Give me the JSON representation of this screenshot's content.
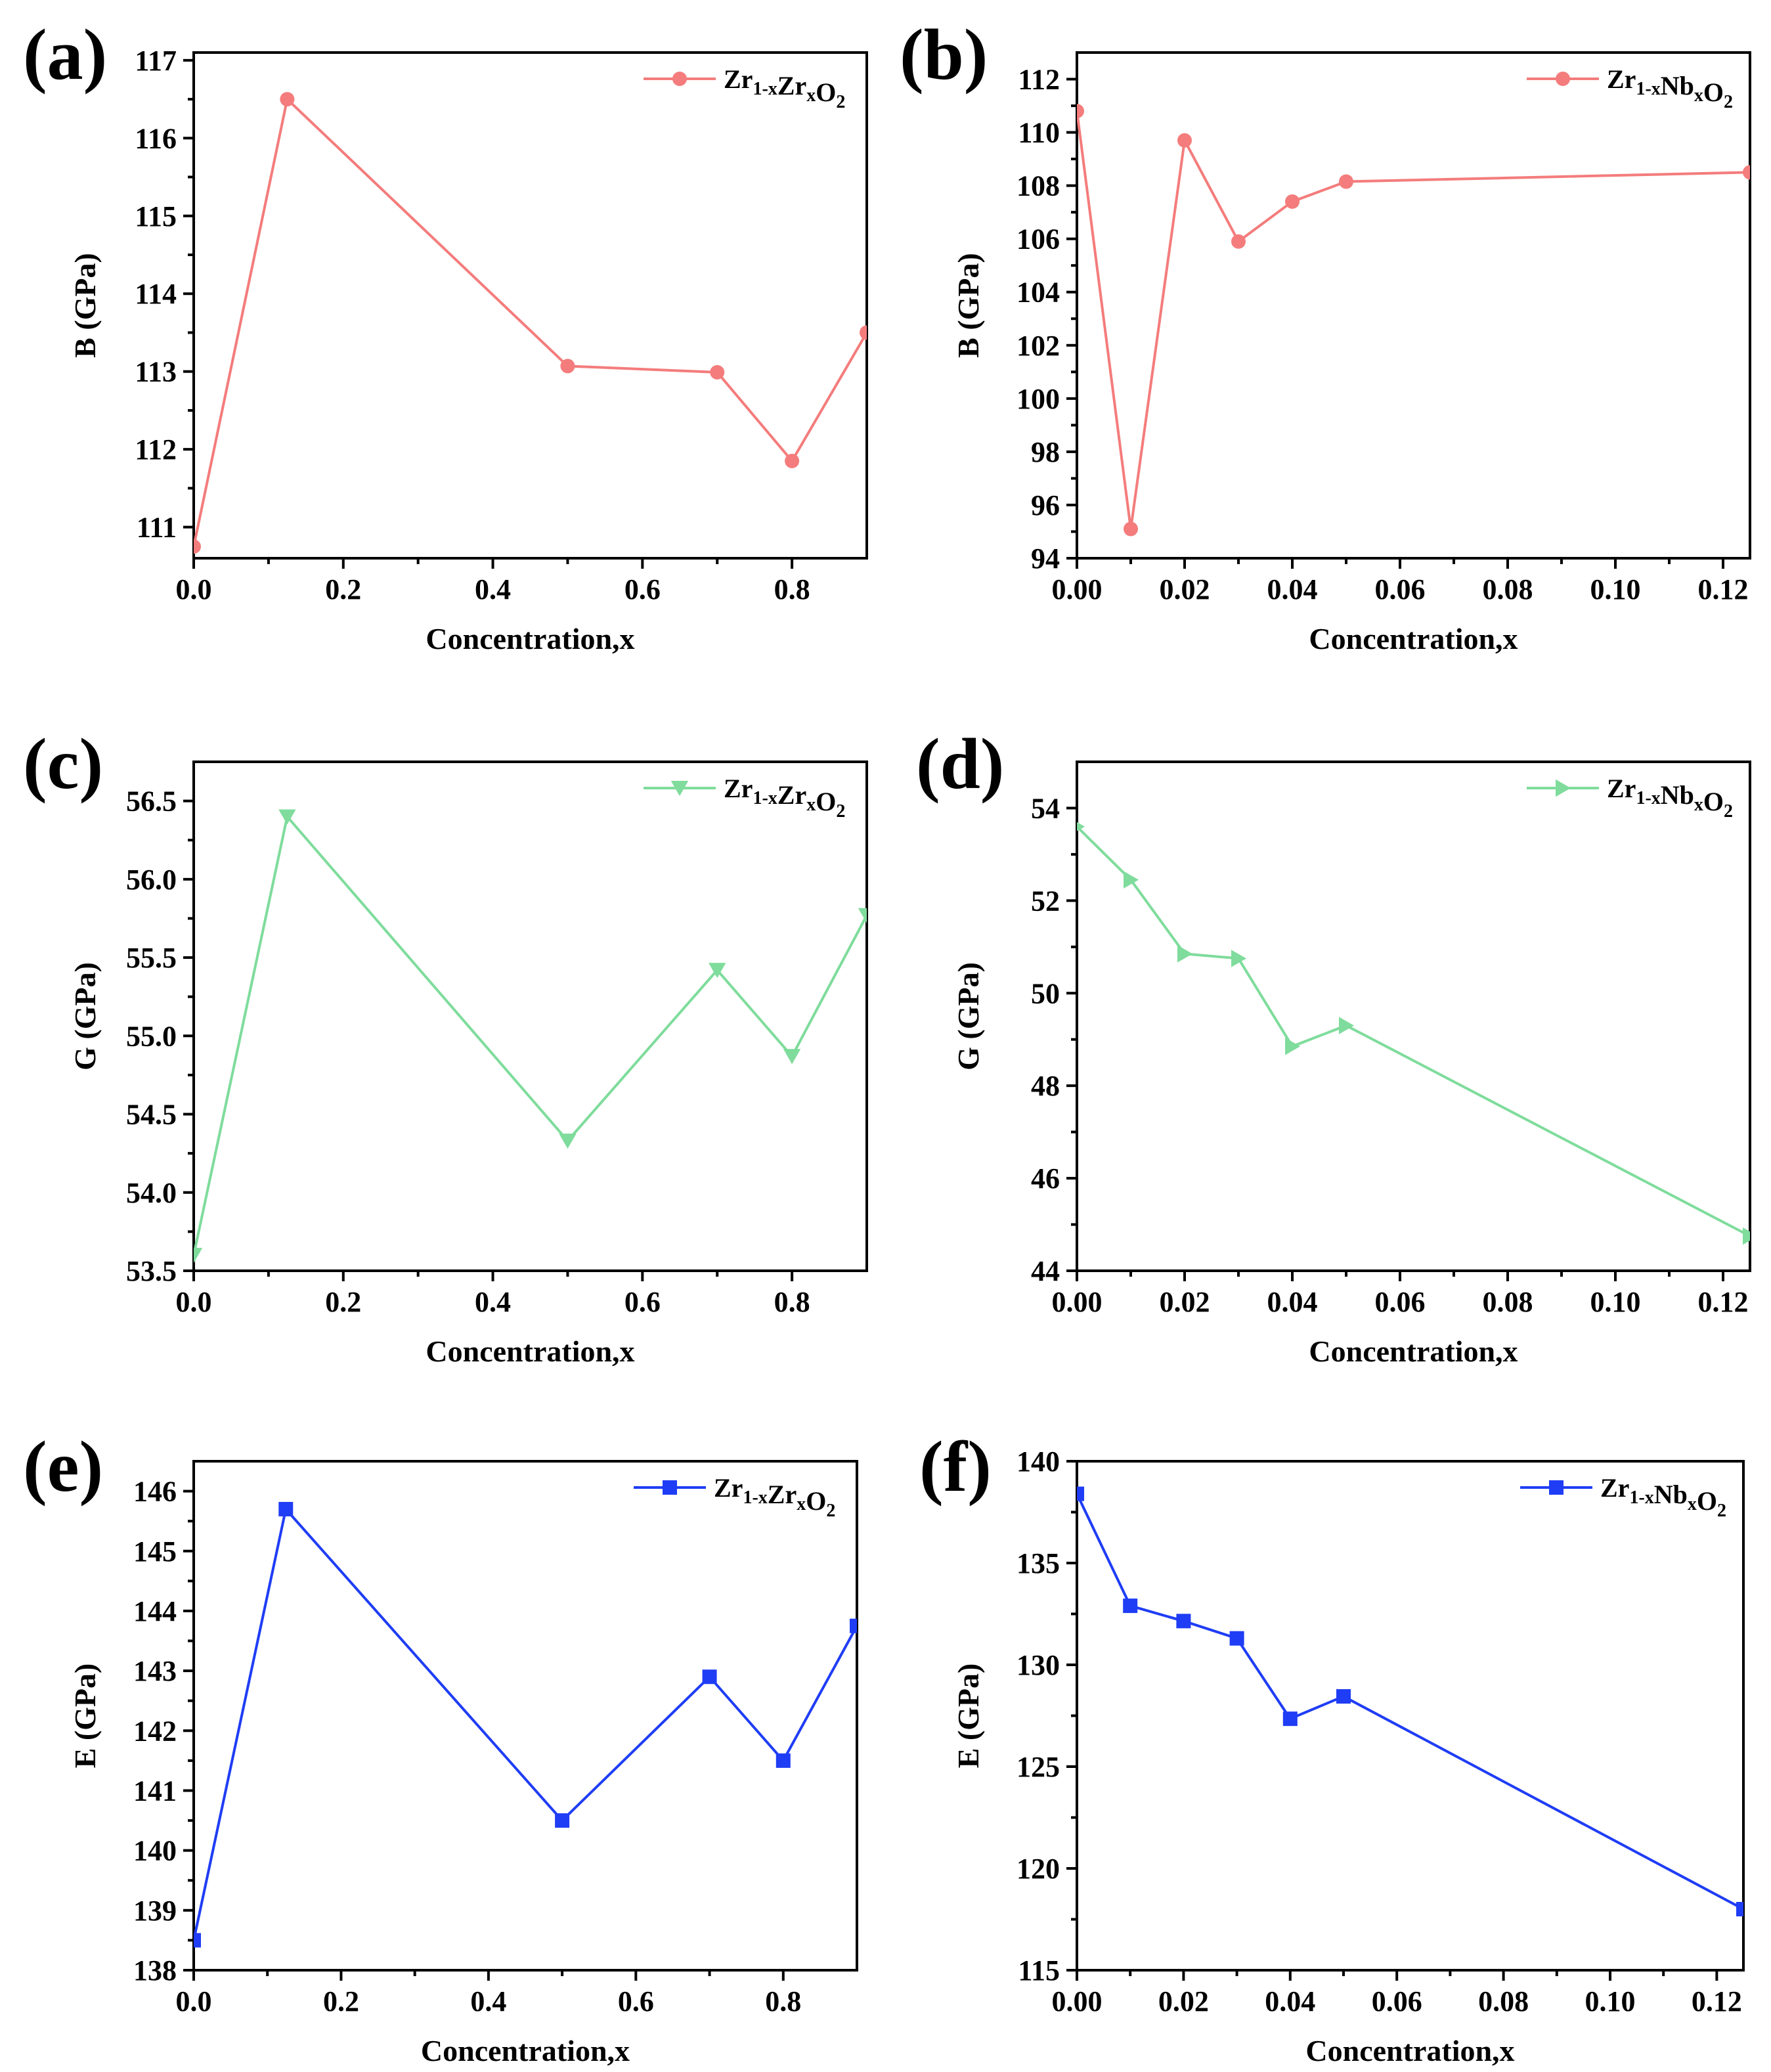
{
  "colors": {
    "red": "#f47c7c",
    "green": "#7fdc9c",
    "blue": "#1f3df5"
  },
  "chart_data": [
    {
      "panel": "(a)",
      "type": "line",
      "marker": "circle",
      "color": "red",
      "xlabel": "Concentration,x",
      "ylabel": "B (GPa)",
      "xlim": [
        0,
        0.9
      ],
      "ylim": [
        110.6,
        117.1
      ],
      "xticks": [
        0.0,
        0.2,
        0.4,
        0.6,
        0.8
      ],
      "xtick_labels": [
        "0.0",
        "0.2",
        "0.4",
        "0.6",
        "0.8"
      ],
      "yticks": [
        111,
        112,
        113,
        114,
        115,
        116,
        117
      ],
      "ytick_labels": [
        "111",
        "112",
        "113",
        "114",
        "115",
        "116",
        "117"
      ],
      "legend": {
        "base": "Zr",
        "sub1": "1-x",
        "mid": "Zr",
        "sub2": "x",
        "tail": "O",
        "sub3": "2"
      },
      "x": [
        0,
        0.125,
        0.5,
        0.7,
        0.8,
        0.9
      ],
      "y": [
        110.75,
        116.5,
        113.07,
        112.99,
        111.85,
        113.5
      ]
    },
    {
      "panel": "(b)",
      "type": "line",
      "marker": "circle",
      "color": "red",
      "xlabel": "Concentration,x",
      "ylabel": "B (GPa)",
      "xlim": [
        0,
        0.125
      ],
      "ylim": [
        94,
        113
      ],
      "xticks": [
        0,
        0.02,
        0.04,
        0.06,
        0.08,
        0.1,
        0.12
      ],
      "xtick_labels": [
        "0.00",
        "0.02",
        "0.04",
        "0.06",
        "0.08",
        "0.10",
        "0.12"
      ],
      "yticks": [
        94,
        96,
        98,
        100,
        102,
        104,
        106,
        108,
        110,
        112
      ],
      "ytick_labels": [
        "94",
        "96",
        "98",
        "100",
        "102",
        "104",
        "106",
        "108",
        "110",
        "112"
      ],
      "legend": {
        "base": "Zr",
        "sub1": "1-x",
        "mid": "Nb",
        "sub2": "x",
        "tail": "O",
        "sub3": "2"
      },
      "x": [
        0,
        0.01,
        0.02,
        0.03,
        0.04,
        0.05,
        0.125
      ],
      "y": [
        110.8,
        95.1,
        109.7,
        105.9,
        107.4,
        108.15,
        108.5
      ]
    },
    {
      "panel": "(c)",
      "type": "line",
      "marker": "triangle-down",
      "color": "green",
      "xlabel": "Concentration,x",
      "ylabel": "G (GPa)",
      "xlim": [
        0,
        0.9
      ],
      "ylim": [
        53.5,
        56.75
      ],
      "xticks": [
        0.0,
        0.2,
        0.4,
        0.6,
        0.8
      ],
      "xtick_labels": [
        "0.0",
        "0.2",
        "0.4",
        "0.6",
        "0.8"
      ],
      "yticks": [
        53.5,
        54.0,
        54.5,
        55.0,
        55.5,
        56.0,
        56.5
      ],
      "ytick_labels": [
        "53.5",
        "54.0",
        "54.5",
        "55.0",
        "55.5",
        "56.0",
        "56.5"
      ],
      "legend": {
        "base": "Zr",
        "sub1": "1-x",
        "mid": "Zr",
        "sub2": "x",
        "tail": "O",
        "sub3": "2"
      },
      "x": [
        0,
        0.125,
        0.5,
        0.7,
        0.8,
        0.9
      ],
      "y": [
        53.6,
        56.4,
        54.33,
        55.42,
        54.87,
        55.77
      ]
    },
    {
      "panel": "(d)",
      "type": "line",
      "marker": "triangle-right",
      "color": "green",
      "xlabel": "Concentration,x",
      "ylabel": "G (GPa)",
      "xlim": [
        0,
        0.125
      ],
      "ylim": [
        44,
        55
      ],
      "xticks": [
        0,
        0.02,
        0.04,
        0.06,
        0.08,
        0.1,
        0.12
      ],
      "xtick_labels": [
        "0.00",
        "0.02",
        "0.04",
        "0.06",
        "0.08",
        "0.10",
        "0.12"
      ],
      "yticks": [
        44,
        46,
        48,
        50,
        52,
        54
      ],
      "ytick_labels": [
        "44",
        "46",
        "48",
        "50",
        "52",
        "54"
      ],
      "legend": {
        "base": "Zr",
        "sub1": "1-x",
        "mid": "Nb",
        "sub2": "x",
        "tail": "O",
        "sub3": "2"
      },
      "x": [
        0,
        0.01,
        0.02,
        0.03,
        0.04,
        0.05,
        0.125
      ],
      "y": [
        53.6,
        52.45,
        50.85,
        50.75,
        48.85,
        49.3,
        44.75
      ]
    },
    {
      "panel": "(e)",
      "type": "line",
      "marker": "square",
      "color": "blue",
      "xlabel": "Concentration,x",
      "ylabel": "E (GPa)",
      "xlim": [
        0,
        0.9
      ],
      "ylim": [
        138,
        146.5
      ],
      "xticks": [
        0.0,
        0.2,
        0.4,
        0.6,
        0.8
      ],
      "xtick_labels": [
        "0.0",
        "0.2",
        "0.4",
        "0.6",
        "0.8"
      ],
      "yticks": [
        138,
        139,
        140,
        141,
        142,
        143,
        144,
        145,
        146
      ],
      "ytick_labels": [
        "138",
        "139",
        "140",
        "141",
        "142",
        "143",
        "144",
        "145",
        "146"
      ],
      "legend": {
        "base": "Zr",
        "sub1": "1-x",
        "mid": "Zr",
        "sub2": "x",
        "tail": "O",
        "sub3": "2"
      },
      "x": [
        0,
        0.125,
        0.5,
        0.7,
        0.8,
        0.9
      ],
      "y": [
        138.5,
        145.7,
        140.5,
        142.9,
        141.5,
        143.75
      ]
    },
    {
      "panel": "(f)",
      "type": "line",
      "marker": "square",
      "color": "blue",
      "xlabel": "Concentration,x",
      "ylabel": "E (GPa)",
      "xlim": [
        0,
        0.125
      ],
      "ylim": [
        115,
        140
      ],
      "xticks": [
        0,
        0.02,
        0.04,
        0.06,
        0.08,
        0.1,
        0.12
      ],
      "xtick_labels": [
        "0.00",
        "0.02",
        "0.04",
        "0.06",
        "0.08",
        "0.10",
        "0.12"
      ],
      "yticks": [
        115,
        120,
        125,
        130,
        135,
        140
      ],
      "ytick_labels": [
        "115",
        "120",
        "125",
        "130",
        "135",
        "140"
      ],
      "legend": {
        "base": "Zr",
        "sub1": "1-x",
        "mid": "Nb",
        "sub2": "x",
        "tail": "O",
        "sub3": "2"
      },
      "x": [
        0,
        0.01,
        0.02,
        0.03,
        0.04,
        0.05,
        0.125
      ],
      "y": [
        138.4,
        132.9,
        132.15,
        131.3,
        127.35,
        128.45,
        118.0
      ]
    }
  ]
}
